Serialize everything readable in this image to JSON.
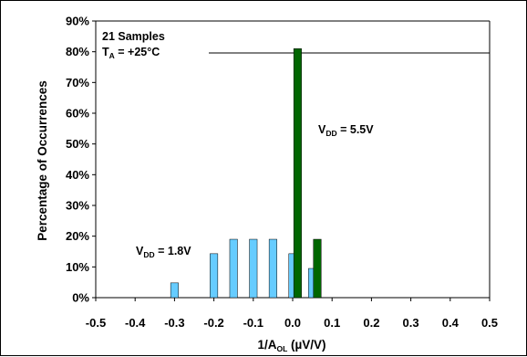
{
  "chart_data": {
    "type": "bar",
    "xlabel": {
      "main": "1/A",
      "sub": "OL",
      "unit": " (µV/V)"
    },
    "ylabel": "Percentage of Occurrences",
    "xlim": [
      -0.5,
      0.5
    ],
    "ylim": [
      0,
      90
    ],
    "x_ticks": [
      "-0.5",
      "-0.4",
      "-0.3",
      "-0.2",
      "-0.1",
      "0.0",
      "0.1",
      "0.2",
      "0.3",
      "0.4",
      "0.5"
    ],
    "y_ticks": [
      "0%",
      "10%",
      "20%",
      "30%",
      "40%",
      "50%",
      "60%",
      "70%",
      "80%",
      "90%"
    ],
    "grid": false,
    "annotations": {
      "samples": "21 Samples",
      "temperature": {
        "main": "T",
        "sub": "A",
        "rest": " = +25°C"
      }
    },
    "series": [
      {
        "label": {
          "main": "V",
          "sub": "DD",
          "rest": " = 1.8V"
        },
        "color": "#66ccff",
        "x": [
          -0.3,
          -0.2,
          -0.15,
          -0.1,
          -0.05,
          0.0,
          0.05
        ],
        "values": [
          4.8,
          14.3,
          19.0,
          19.0,
          19.0,
          14.3,
          9.5
        ]
      },
      {
        "label": {
          "main": "V",
          "sub": "DD",
          "rest": " = 5.5V"
        },
        "color": "#006600",
        "x": [
          0.0125,
          0.0625
        ],
        "values": [
          81.0,
          19.0
        ]
      }
    ]
  }
}
